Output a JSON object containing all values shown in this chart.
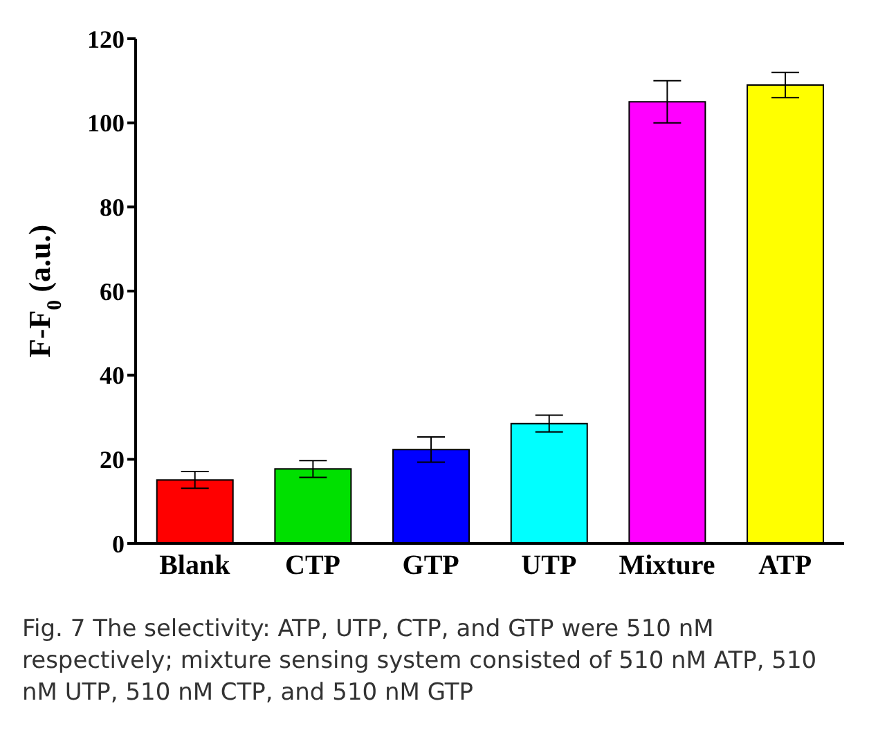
{
  "chart_data": {
    "type": "bar",
    "ylabel": "F-F$_{0}$ (a.u.)",
    "categories": [
      "Blank",
      "CTP",
      "GTP",
      "UTP",
      "Mixture",
      "ATP"
    ],
    "values": [
      15.1,
      17.7,
      22.3,
      28.5,
      105,
      109
    ],
    "errors": [
      2,
      2,
      3,
      2,
      5,
      3
    ],
    "colors": [
      "#ff0000",
      "#00e000",
      "#0000ff",
      "#00ffff",
      "#ff00ff",
      "#ffff00"
    ],
    "ylim": [
      0,
      120
    ],
    "yticks": [
      0,
      20,
      40,
      60,
      80,
      100,
      120
    ],
    "grid": false,
    "legend": false,
    "annotations": [
      "Fig. 7 The selectivity: ATP, UTP, CTP, and GTP were 510 nM respectively; mixture sensing system consisted of 510 nM ATP, 510 nM UTP, 510 nM CTP, and 510 nM GTP"
    ]
  }
}
